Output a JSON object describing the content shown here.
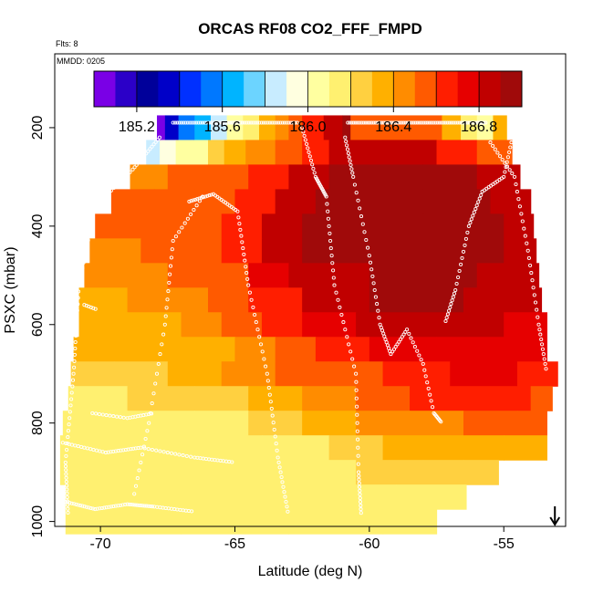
{
  "chart_data": {
    "type": "heatmap",
    "title": "ORCAS RF08 CO2_FFF_FMPD",
    "flights_label": "Flts: 8",
    "date_label": "MMDD: 0205",
    "xlabel": "Latitude (deg N)",
    "ylabel": "PSXC (mbar)",
    "xlim": [
      -71.7,
      -52.7
    ],
    "ylim": [
      1010,
      50
    ],
    "x_ticks": [
      -70,
      -65,
      -60,
      -55
    ],
    "x_tick_labels": [
      "-70",
      "-65",
      "-60",
      "-55"
    ],
    "y_ticks": [
      200,
      400,
      600,
      800,
      1000
    ],
    "y_tick_labels": [
      "200",
      "400",
      "600",
      "800",
      "1000"
    ],
    "colorbar": {
      "range": [
        185.0,
        187.0
      ],
      "ticks": [
        185.2,
        185.6,
        186.0,
        186.4,
        186.8
      ],
      "tick_labels": [
        "185.2",
        "185.6",
        "186.0",
        "186.4",
        "186.8"
      ],
      "colors": [
        "#7a00e6",
        "#2b00c8",
        "#00009a",
        "#0000c8",
        "#0030ff",
        "#0078ff",
        "#00b4ff",
        "#6cd4ff",
        "#c8ecff",
        "#ffffe0",
        "#ffffa0",
        "#fff070",
        "#ffd040",
        "#ffb000",
        "#ff8c00",
        "#ff5a00",
        "#ff1e00",
        "#e60000",
        "#c00000",
        "#a00a0a"
      ]
    },
    "annotation_arrow_latitude": -53.1,
    "pressure_bands": [
      {
        "p": 200,
        "lat_start": -67.9,
        "lat_end": -54.9,
        "segments": [
          [
            -67.9,
            185.1
          ],
          [
            -67.6,
            185.3
          ],
          [
            -67.1,
            185.5
          ],
          [
            -66.5,
            185.7
          ],
          [
            -65.9,
            185.85
          ],
          [
            -65.3,
            186.0
          ],
          [
            -64.7,
            186.15
          ],
          [
            -64.1,
            186.3
          ],
          [
            -63.5,
            186.45
          ],
          [
            -63.0,
            186.55
          ],
          [
            -62.5,
            186.7
          ],
          [
            -61.7,
            186.85
          ],
          [
            -61.0,
            186.95
          ],
          [
            -60.7,
            186.5
          ],
          [
            -57.3,
            186.3
          ],
          [
            -56.6,
            186.15
          ],
          [
            -56.0,
            186.0
          ],
          [
            -55.4,
            186.35
          ]
        ]
      },
      {
        "p": 250,
        "lat_start": -68.3,
        "lat_end": -54.7,
        "segments": [
          [
            -68.3,
            185.85
          ],
          [
            -67.8,
            185.9
          ],
          [
            -67.2,
            186.0
          ],
          [
            -66.6,
            186.1
          ],
          [
            -66.0,
            186.25
          ],
          [
            -65.4,
            186.35
          ],
          [
            -64.6,
            186.45
          ],
          [
            -63.5,
            186.55
          ],
          [
            -62.5,
            186.7
          ],
          [
            -61.5,
            186.85
          ],
          [
            -59.5,
            186.8
          ],
          [
            -57.5,
            186.7
          ],
          [
            -56.0,
            186.6
          ]
        ]
      },
      {
        "p": 300,
        "lat_start": -68.9,
        "lat_end": -54.4,
        "segments": [
          [
            -68.9,
            186.45
          ],
          [
            -67.5,
            186.5
          ],
          [
            -66.0,
            186.6
          ],
          [
            -64.5,
            186.7
          ],
          [
            -63.0,
            186.85
          ],
          [
            -61.5,
            186.95
          ],
          [
            -58.0,
            186.95
          ],
          [
            -56.0,
            186.85
          ]
        ]
      },
      {
        "p": 350,
        "lat_start": -69.6,
        "lat_end": -54.0,
        "segments": [
          [
            -69.6,
            186.5
          ],
          [
            -68.0,
            186.55
          ],
          [
            -66.5,
            186.6
          ],
          [
            -65.0,
            186.7
          ],
          [
            -63.5,
            186.85
          ],
          [
            -62.0,
            186.95
          ],
          [
            -58.0,
            186.95
          ],
          [
            -55.5,
            186.85
          ]
        ]
      },
      {
        "p": 400,
        "lat_start": -70.2,
        "lat_end": -53.9,
        "segments": [
          [
            -70.2,
            186.5
          ],
          [
            -68.5,
            186.55
          ],
          [
            -67.0,
            186.6
          ],
          [
            -65.5,
            186.7
          ],
          [
            -64.0,
            186.85
          ],
          [
            -62.5,
            186.95
          ],
          [
            -58.0,
            186.95
          ],
          [
            -55.0,
            186.85
          ]
        ]
      },
      {
        "p": 450,
        "lat_start": -70.4,
        "lat_end": -53.8,
        "segments": [
          [
            -70.4,
            186.45
          ],
          [
            -68.5,
            186.5
          ],
          [
            -67.0,
            186.55
          ],
          [
            -65.5,
            186.65
          ],
          [
            -64.0,
            186.8
          ],
          [
            -62.5,
            186.9
          ],
          [
            -60.0,
            186.95
          ],
          [
            -55.0,
            186.85
          ]
        ]
      },
      {
        "p": 500,
        "lat_start": -70.6,
        "lat_end": -53.7,
        "segments": [
          [
            -70.6,
            186.4
          ],
          [
            -69.0,
            186.45
          ],
          [
            -67.5,
            186.5
          ],
          [
            -66.0,
            186.6
          ],
          [
            -64.5,
            186.75
          ],
          [
            -63.0,
            186.85
          ],
          [
            -60.0,
            186.95
          ],
          [
            -56.0,
            186.85
          ]
        ]
      },
      {
        "p": 550,
        "lat_start": -70.8,
        "lat_end": -53.6,
        "segments": [
          [
            -70.8,
            186.35
          ],
          [
            -69.0,
            186.4
          ],
          [
            -67.5,
            186.45
          ],
          [
            -66.0,
            186.55
          ],
          [
            -64.5,
            186.7
          ],
          [
            -62.5,
            186.8
          ],
          [
            -60.0,
            186.9
          ],
          [
            -56.5,
            186.85
          ]
        ]
      },
      {
        "p": 600,
        "lat_start": -70.8,
        "lat_end": -53.4,
        "segments": [
          [
            -70.8,
            186.3
          ],
          [
            -69.0,
            186.35
          ],
          [
            -67.0,
            186.4
          ],
          [
            -65.5,
            186.5
          ],
          [
            -64.0,
            186.65
          ],
          [
            -62.5,
            186.75
          ],
          [
            -60.5,
            186.85
          ],
          [
            -57.0,
            186.8
          ],
          [
            -55.0,
            186.75
          ]
        ]
      },
      {
        "p": 650,
        "lat_start": -71.0,
        "lat_end": -53.4,
        "segments": [
          [
            -71.0,
            186.3
          ],
          [
            -69.0,
            186.32
          ],
          [
            -67.0,
            186.38
          ],
          [
            -65.0,
            186.45
          ],
          [
            -63.5,
            186.55
          ],
          [
            -62.0,
            186.65
          ],
          [
            -60.0,
            186.72
          ],
          [
            -57.5,
            186.75
          ],
          [
            -55.0,
            186.72
          ]
        ]
      },
      {
        "p": 700,
        "lat_start": -71.1,
        "lat_end": -53.0,
        "segments": [
          [
            -71.1,
            186.25
          ],
          [
            -69.5,
            186.28
          ],
          [
            -67.5,
            186.32
          ],
          [
            -65.5,
            186.4
          ],
          [
            -63.5,
            186.5
          ],
          [
            -61.5,
            186.6
          ],
          [
            -59.5,
            186.68
          ],
          [
            -57.0,
            186.72
          ],
          [
            -54.5,
            186.7
          ]
        ]
      },
      {
        "p": 750,
        "lat_start": -71.2,
        "lat_end": -53.2,
        "segments": [
          [
            -71.2,
            186.2
          ],
          [
            -69.0,
            186.22
          ],
          [
            -66.5,
            186.25
          ],
          [
            -64.5,
            186.3
          ],
          [
            -62.5,
            186.45
          ],
          [
            -60.5,
            186.55
          ],
          [
            -58.5,
            186.62
          ],
          [
            -56.0,
            186.65
          ],
          [
            -54.0,
            186.6
          ]
        ]
      },
      {
        "p": 800,
        "lat_start": -71.4,
        "lat_end": -53.4,
        "segments": [
          [
            -71.4,
            186.15
          ],
          [
            -69.0,
            186.18
          ],
          [
            -66.5,
            186.2
          ],
          [
            -64.5,
            186.22
          ],
          [
            -62.5,
            186.3
          ],
          [
            -60.5,
            186.4
          ],
          [
            -58.5,
            186.45
          ],
          [
            -56.5,
            186.5
          ],
          [
            -54.5,
            186.5
          ]
        ]
      },
      {
        "p": 850,
        "lat_start": -71.5,
        "lat_end": -53.4,
        "segments": [
          [
            -71.5,
            186.15
          ],
          [
            -69.0,
            186.15
          ],
          [
            -66.5,
            186.18
          ],
          [
            -64.0,
            186.2
          ],
          [
            -61.5,
            186.25
          ],
          [
            -59.5,
            186.3
          ],
          [
            -57.0,
            186.33
          ],
          [
            -55.0,
            186.32
          ]
        ]
      },
      {
        "p": 900,
        "lat_start": -71.5,
        "lat_end": -55.2,
        "segments": [
          [
            -71.5,
            186.15
          ],
          [
            -69.0,
            186.15
          ],
          [
            -66.0,
            186.17
          ],
          [
            -63.0,
            186.2
          ],
          [
            -60.5,
            186.22
          ],
          [
            -58.0,
            186.25
          ],
          [
            -56.5,
            186.22
          ]
        ]
      },
      {
        "p": 950,
        "lat_start": -71.3,
        "lat_end": -56.4,
        "segments": [
          [
            -71.3,
            186.15
          ],
          [
            -68.0,
            186.15
          ],
          [
            -64.5,
            186.17
          ],
          [
            -61.5,
            186.18
          ],
          [
            -59.0,
            186.2
          ]
        ]
      },
      {
        "p": 1000,
        "lat_start": -71.3,
        "lat_end": -57.5,
        "segments": [
          [
            -71.3,
            186.15
          ],
          [
            -67.0,
            186.15
          ],
          [
            -63.0,
            186.16
          ],
          [
            -59.5,
            186.17
          ]
        ]
      }
    ]
  }
}
